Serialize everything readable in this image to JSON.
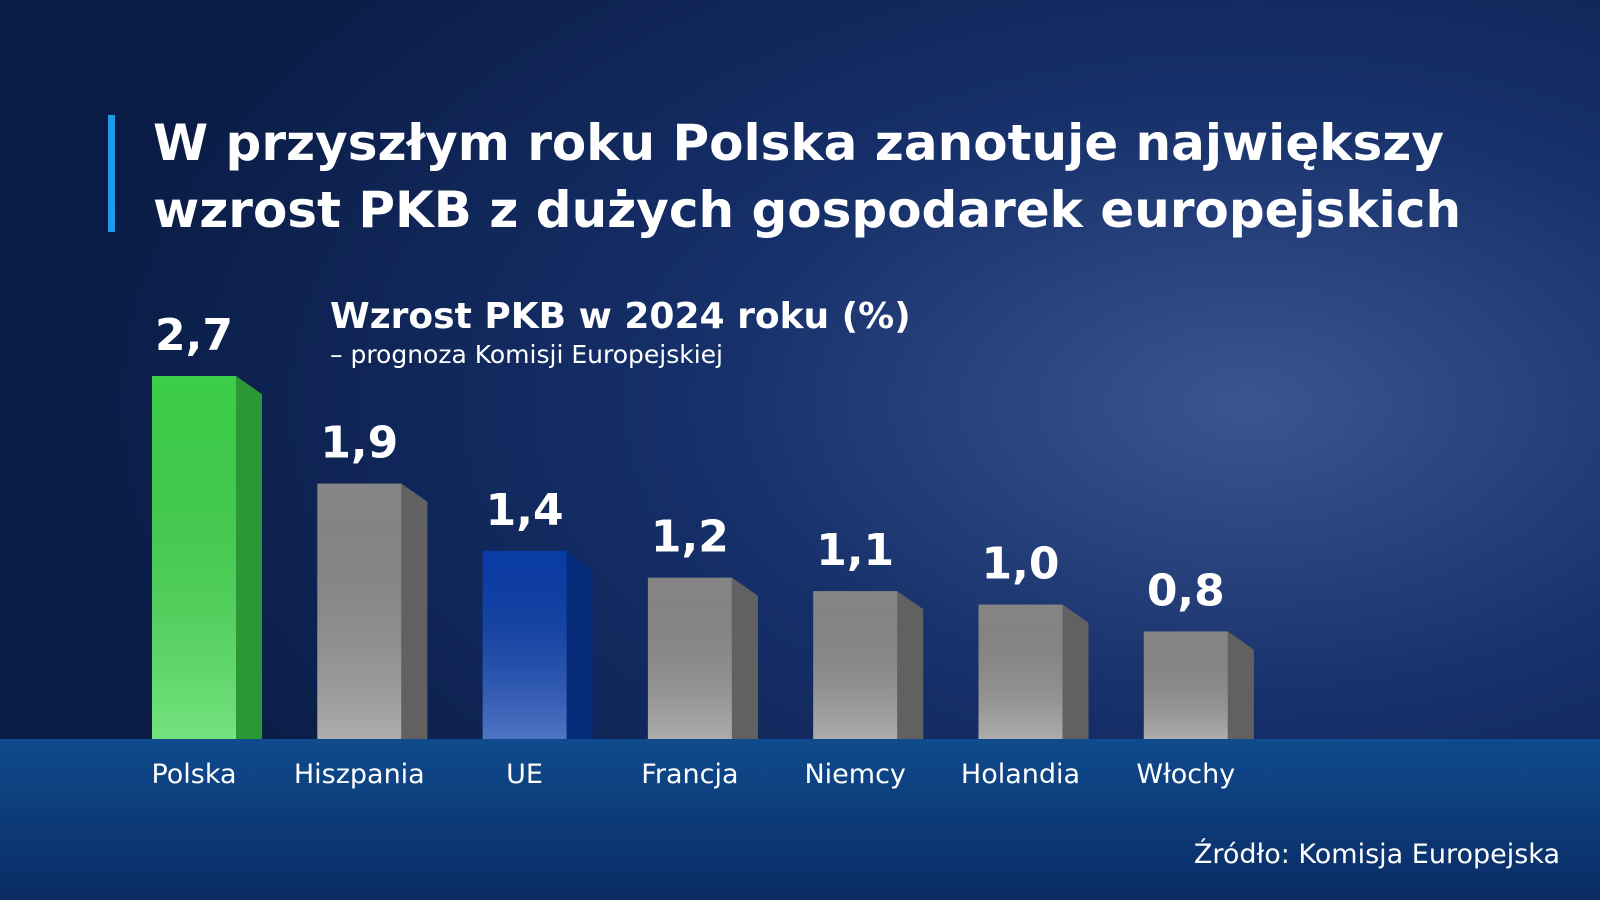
{
  "chart_data": {
    "type": "bar",
    "title": "W przyszłym roku Polska zanotuje największy wzrost PKB z dużych gospodarek europejskich",
    "subtitle": "Wzrost PKB w 2024 roku (%)",
    "note": "– prognoza Komisji Europejskiej",
    "source": "Źródło: Komisja Europejska",
    "categories": [
      "Polska",
      "Hiszpania",
      "UE",
      "Francja",
      "Niemcy",
      "Holandia",
      "Włochy"
    ],
    "values": [
      2.7,
      1.9,
      1.4,
      1.2,
      1.1,
      1.0,
      0.8
    ],
    "value_labels": [
      "2,7",
      "1,9",
      "1,4",
      "1,2",
      "1,1",
      "1,0",
      "0,8"
    ],
    "colors": [
      "#3fd94c",
      "#8c8c8c",
      "#0a3fae",
      "#8c8c8c",
      "#8c8c8c",
      "#8c8c8c",
      "#8c8c8c"
    ]
  }
}
